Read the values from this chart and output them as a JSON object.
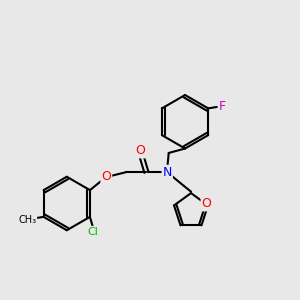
{
  "bg_color": "#e8e8e8",
  "bond_color": "#000000",
  "bond_width": 1.5,
  "atom_colors": {
    "O": "#ff0000",
    "N": "#0000ff",
    "Cl": "#00bb00",
    "F": "#cc00cc",
    "C": "#000000"
  },
  "font_size": 8,
  "figsize": [
    3.0,
    3.0
  ],
  "dpi": 100
}
